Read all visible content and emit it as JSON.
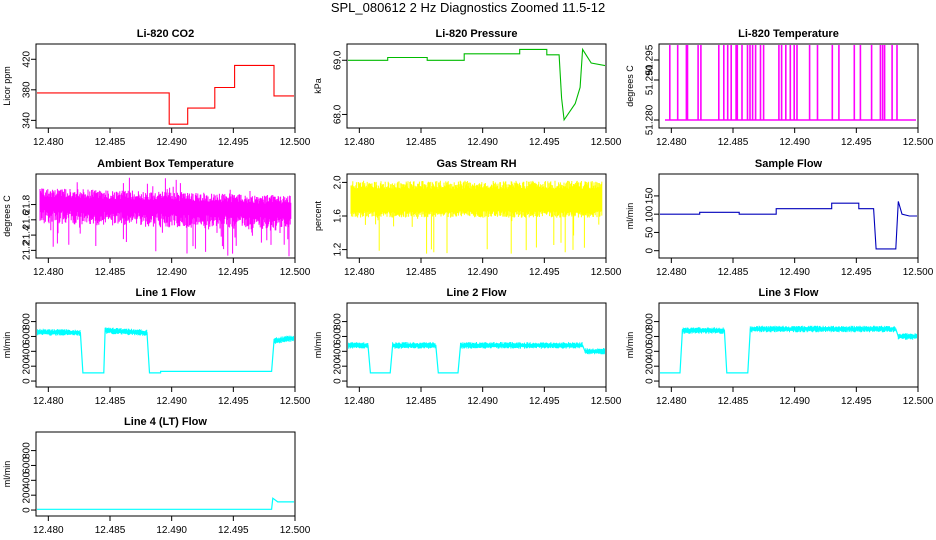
{
  "page": {
    "title": "SPL_080612  2 Hz Diagnostics Zoomed 11.5-12"
  },
  "chart_data": [
    {
      "type": "line",
      "title": "Li-820 CO2",
      "ylabel": "Licor ppm",
      "color": "#ff0000",
      "xlim": [
        12.479,
        12.5
      ],
      "ylim": [
        330,
        440
      ],
      "xticks": [
        "12.480",
        "12.485",
        "12.490",
        "12.495",
        "12.500"
      ],
      "xtick_values": [
        12.48,
        12.485,
        12.49,
        12.495,
        12.5
      ],
      "yticks": [
        "340",
        "380",
        "420"
      ],
      "ytick_values": [
        340,
        380,
        420
      ],
      "series": [
        {
          "x": [
            12.479,
            12.4898,
            12.4898,
            12.4913,
            12.4913,
            12.4935,
            12.4935,
            12.4951,
            12.4951,
            12.4983,
            12.4983,
            12.5
          ],
          "values": [
            376,
            376,
            335,
            335,
            356,
            356,
            383,
            383,
            412,
            412,
            372,
            372
          ]
        }
      ]
    },
    {
      "type": "line",
      "title": "Li-820 Pressure",
      "ylabel": "kPa",
      "color": "#00bb00",
      "xlim": [
        12.479,
        12.5
      ],
      "ylim": [
        67.75,
        69.3
      ],
      "xticks": [
        "12.480",
        "12.485",
        "12.490",
        "12.495",
        "12.500"
      ],
      "xtick_values": [
        12.48,
        12.485,
        12.49,
        12.495,
        12.5
      ],
      "yticks": [
        "68.0",
        "69.0"
      ],
      "ytick_values": [
        68.0,
        69.0
      ],
      "series": [
        {
          "x": [
            12.479,
            12.4823,
            12.4823,
            12.4855,
            12.4855,
            12.4885,
            12.4885,
            12.493,
            12.493,
            12.4952,
            12.4952,
            12.4962,
            12.4964,
            12.4966,
            12.4975,
            12.4979,
            12.4981,
            12.4988,
            12.5
          ],
          "values": [
            69.0,
            69.0,
            69.05,
            69.05,
            69.0,
            69.0,
            69.12,
            69.12,
            69.2,
            69.2,
            69.1,
            69.1,
            68.3,
            67.9,
            68.2,
            68.5,
            69.2,
            68.95,
            68.9
          ]
        }
      ]
    },
    {
      "type": "line",
      "title": "Li-820 Temperature",
      "ylabel": "degrees C",
      "color": "#ff00ff",
      "xlim": [
        12.479,
        12.5
      ],
      "ylim": [
        51.278,
        51.299
      ],
      "xticks": [
        "12.480",
        "12.485",
        "12.490",
        "12.495",
        "12.500"
      ],
      "xtick_values": [
        12.48,
        12.485,
        12.49,
        12.495,
        12.5
      ],
      "yticks": [
        "51.280",
        "51.290",
        "51.295"
      ],
      "ytick_values": [
        51.28,
        51.29,
        51.295
      ],
      "series": [
        {
          "x": [
            12.479,
            12.5
          ],
          "values": [
            51.28,
            51.299
          ]
        }
      ]
    },
    {
      "type": "line",
      "title": "Ambient Box Temperature",
      "ylabel": "degrees C",
      "color": "#ff00ff",
      "xlim": [
        12.479,
        12.5
      ],
      "ylim": [
        21.1,
        22.2
      ],
      "xticks": [
        "12.480",
        "12.485",
        "12.490",
        "12.495",
        "12.500"
      ],
      "xtick_values": [
        12.48,
        12.485,
        12.49,
        12.495,
        12.5
      ],
      "yticks": [
        "21.2",
        "21.4",
        "21.6",
        "21.8"
      ],
      "ytick_values": [
        21.2,
        21.4,
        21.6,
        21.8
      ],
      "series": [
        {
          "x": [
            12.479,
            12.5
          ],
          "values": [
            21.85,
            21.75
          ]
        }
      ]
    },
    {
      "type": "line",
      "title": "Gas Stream RH",
      "ylabel": "percent",
      "color": "#ffff00",
      "xlim": [
        12.479,
        12.5
      ],
      "ylim": [
        1.1,
        2.1
      ],
      "xticks": [
        "12.480",
        "12.485",
        "12.490",
        "12.495",
        "12.500"
      ],
      "xtick_values": [
        12.48,
        12.485,
        12.49,
        12.495,
        12.5
      ],
      "yticks": [
        "1.2",
        "1.6",
        "2.0"
      ],
      "ytick_values": [
        1.2,
        1.6,
        2.0
      ],
      "series": [
        {
          "x": [
            12.479,
            12.5
          ],
          "values": [
            1.8,
            1.8
          ]
        }
      ]
    },
    {
      "type": "line",
      "title": "Sample Flow",
      "ylabel": "ml/min",
      "color": "#0000bb",
      "xlim": [
        12.479,
        12.5
      ],
      "ylim": [
        -20,
        210
      ],
      "xticks": [
        "12.480",
        "12.485",
        "12.490",
        "12.495",
        "12.500"
      ],
      "xtick_values": [
        12.48,
        12.485,
        12.49,
        12.495,
        12.5
      ],
      "yticks": [
        "0",
        "50",
        "100",
        "150"
      ],
      "ytick_values": [
        0,
        50,
        100,
        150
      ],
      "series": [
        {
          "x": [
            12.479,
            12.4823,
            12.4823,
            12.4855,
            12.4855,
            12.4885,
            12.4885,
            12.493,
            12.493,
            12.4952,
            12.4952,
            12.4964,
            12.4966,
            12.4982,
            12.4984,
            12.4987,
            12.4993,
            12.5
          ],
          "values": [
            100,
            100,
            105,
            105,
            100,
            100,
            115,
            115,
            130,
            130,
            115,
            115,
            5,
            5,
            135,
            100,
            95,
            95
          ]
        }
      ]
    },
    {
      "type": "line",
      "title": "Line 1 Flow",
      "ylabel": "ml/min",
      "color": "#00ffff",
      "xlim": [
        12.479,
        12.5
      ],
      "ylim": [
        -80,
        1050
      ],
      "xticks": [
        "12.480",
        "12.485",
        "12.490",
        "12.495",
        "12.500"
      ],
      "xtick_values": [
        12.48,
        12.485,
        12.49,
        12.495,
        12.5
      ],
      "yticks": [
        "0",
        "200",
        "400",
        "600",
        "800"
      ],
      "ytick_values": [
        0,
        200,
        400,
        600,
        800
      ],
      "series": [
        {
          "x": [
            12.479,
            12.4826,
            12.4828,
            12.4845,
            12.4846,
            12.488,
            12.4882,
            12.4891,
            12.4891,
            12.4981,
            12.4983,
            12.5
          ],
          "values": [
            660,
            650,
            110,
            110,
            680,
            650,
            110,
            110,
            130,
            130,
            540,
            580
          ]
        }
      ]
    },
    {
      "type": "line",
      "title": "Line 2 Flow",
      "ylabel": "ml/min",
      "color": "#00ffff",
      "xlim": [
        12.479,
        12.5
      ],
      "ylim": [
        -80,
        1050
      ],
      "xticks": [
        "12.480",
        "12.485",
        "12.490",
        "12.495",
        "12.500"
      ],
      "xtick_values": [
        12.48,
        12.485,
        12.49,
        12.495,
        12.5
      ],
      "yticks": [
        "0",
        "200",
        "400",
        "600",
        "800"
      ],
      "ytick_values": [
        0,
        200,
        400,
        600,
        800
      ],
      "series": [
        {
          "x": [
            12.479,
            12.4807,
            12.4809,
            12.4825,
            12.4827,
            12.4862,
            12.4864,
            12.488,
            12.4882,
            12.4981,
            12.4983,
            12.5
          ],
          "values": [
            480,
            480,
            110,
            110,
            480,
            480,
            110,
            110,
            480,
            480,
            400,
            400
          ]
        }
      ]
    },
    {
      "type": "line",
      "title": "Line 3 Flow",
      "ylabel": "ml/min",
      "color": "#00ffff",
      "xlim": [
        12.479,
        12.5
      ],
      "ylim": [
        -80,
        1050
      ],
      "xticks": [
        "12.480",
        "12.485",
        "12.490",
        "12.495",
        "12.500"
      ],
      "xtick_values": [
        12.48,
        12.485,
        12.49,
        12.495,
        12.5
      ],
      "yticks": [
        "0",
        "200",
        "400",
        "600",
        "800"
      ],
      "ytick_values": [
        0,
        200,
        400,
        600,
        800
      ],
      "series": [
        {
          "x": [
            12.479,
            12.4807,
            12.4809,
            12.4843,
            12.4845,
            12.4862,
            12.4864,
            12.4982,
            12.4984,
            12.5
          ],
          "values": [
            110,
            110,
            680,
            680,
            110,
            110,
            700,
            700,
            600,
            600
          ]
        }
      ]
    },
    {
      "type": "line",
      "title": "Line 4 (LT) Flow",
      "ylabel": "ml/min",
      "color": "#00ffff",
      "xlim": [
        12.479,
        12.5
      ],
      "ylim": [
        -80,
        1050
      ],
      "xticks": [
        "12.480",
        "12.485",
        "12.490",
        "12.495",
        "12.500"
      ],
      "xtick_values": [
        12.48,
        12.485,
        12.49,
        12.495,
        12.5
      ],
      "yticks": [
        "0",
        "200",
        "400",
        "600",
        "800"
      ],
      "ytick_values": [
        0,
        200,
        400,
        600,
        800
      ],
      "series": [
        {
          "x": [
            12.479,
            12.4981,
            12.4982,
            12.4986,
            12.5
          ],
          "values": [
            10,
            10,
            160,
            110,
            110
          ]
        }
      ]
    }
  ]
}
